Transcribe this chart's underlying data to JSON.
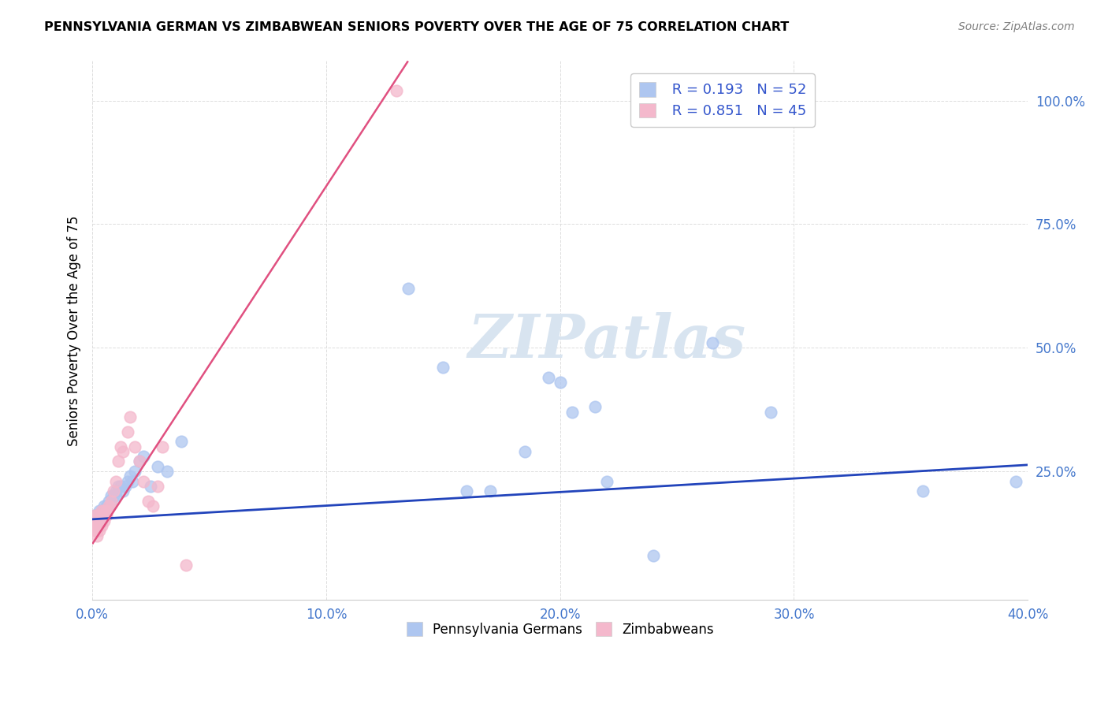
{
  "title": "PENNSYLVANIA GERMAN VS ZIMBABWEAN SENIORS POVERTY OVER THE AGE OF 75 CORRELATION CHART",
  "source": "Source: ZipAtlas.com",
  "ylabel": "Seniors Poverty Over the Age of 75",
  "xlim": [
    0.0,
    0.4
  ],
  "ylim": [
    -0.01,
    1.08
  ],
  "xtick_labels": [
    "0.0%",
    "10.0%",
    "20.0%",
    "30.0%",
    "40.0%"
  ],
  "xtick_vals": [
    0.0,
    0.1,
    0.2,
    0.3,
    0.4
  ],
  "ytick_labels": [
    "25.0%",
    "50.0%",
    "75.0%",
    "100.0%"
  ],
  "ytick_vals": [
    0.25,
    0.5,
    0.75,
    1.0
  ],
  "legend_r_pa": "R = 0.193",
  "legend_n_pa": "N = 52",
  "legend_r_zim": "R = 0.851",
  "legend_n_zim": "N = 45",
  "pa_color": "#aec6f0",
  "pa_edge_color": "#7aaae8",
  "zim_color": "#f4b8cc",
  "zim_edge_color": "#e880a0",
  "pa_line_color": "#2244bb",
  "zim_line_color": "#e05080",
  "legend_text_color": "#3355cc",
  "tick_color": "#4477cc",
  "watermark_color": "#d8e4f0",
  "pa_x": [
    0.001,
    0.001,
    0.002,
    0.002,
    0.002,
    0.003,
    0.003,
    0.003,
    0.004,
    0.004,
    0.004,
    0.005,
    0.005,
    0.005,
    0.006,
    0.006,
    0.007,
    0.007,
    0.008,
    0.008,
    0.009,
    0.01,
    0.01,
    0.011,
    0.012,
    0.013,
    0.014,
    0.015,
    0.016,
    0.017,
    0.018,
    0.02,
    0.022,
    0.025,
    0.028,
    0.032,
    0.038,
    0.135,
    0.15,
    0.16,
    0.17,
    0.185,
    0.195,
    0.2,
    0.205,
    0.215,
    0.22,
    0.24,
    0.265,
    0.29,
    0.355,
    0.395
  ],
  "pa_y": [
    0.16,
    0.14,
    0.16,
    0.15,
    0.14,
    0.17,
    0.16,
    0.15,
    0.17,
    0.16,
    0.15,
    0.18,
    0.17,
    0.16,
    0.18,
    0.17,
    0.19,
    0.18,
    0.2,
    0.19,
    0.2,
    0.21,
    0.2,
    0.22,
    0.22,
    0.21,
    0.22,
    0.23,
    0.24,
    0.23,
    0.25,
    0.27,
    0.28,
    0.22,
    0.26,
    0.25,
    0.31,
    0.62,
    0.46,
    0.21,
    0.21,
    0.29,
    0.44,
    0.43,
    0.37,
    0.38,
    0.23,
    0.08,
    0.51,
    0.37,
    0.21,
    0.23
  ],
  "zim_x": [
    0.001,
    0.001,
    0.001,
    0.001,
    0.001,
    0.001,
    0.002,
    0.002,
    0.002,
    0.002,
    0.002,
    0.002,
    0.002,
    0.003,
    0.003,
    0.003,
    0.003,
    0.003,
    0.004,
    0.004,
    0.004,
    0.004,
    0.005,
    0.005,
    0.005,
    0.006,
    0.006,
    0.007,
    0.008,
    0.009,
    0.01,
    0.011,
    0.012,
    0.013,
    0.015,
    0.016,
    0.018,
    0.02,
    0.022,
    0.024,
    0.026,
    0.028,
    0.03,
    0.04,
    0.13
  ],
  "zim_y": [
    0.13,
    0.14,
    0.15,
    0.14,
    0.15,
    0.16,
    0.12,
    0.13,
    0.14,
    0.15,
    0.16,
    0.14,
    0.15,
    0.13,
    0.14,
    0.15,
    0.16,
    0.15,
    0.14,
    0.15,
    0.16,
    0.17,
    0.15,
    0.16,
    0.17,
    0.16,
    0.17,
    0.18,
    0.19,
    0.21,
    0.23,
    0.27,
    0.3,
    0.29,
    0.33,
    0.36,
    0.3,
    0.27,
    0.23,
    0.19,
    0.18,
    0.22,
    0.3,
    0.06,
    1.02
  ],
  "pa_line_x0": 0.0,
  "pa_line_x1": 0.4,
  "pa_line_y0": 0.153,
  "pa_line_y1": 0.263,
  "zim_line_x0": 0.0,
  "zim_line_x1": 0.135,
  "zim_line_y0": 0.103,
  "zim_line_y1": 1.08
}
